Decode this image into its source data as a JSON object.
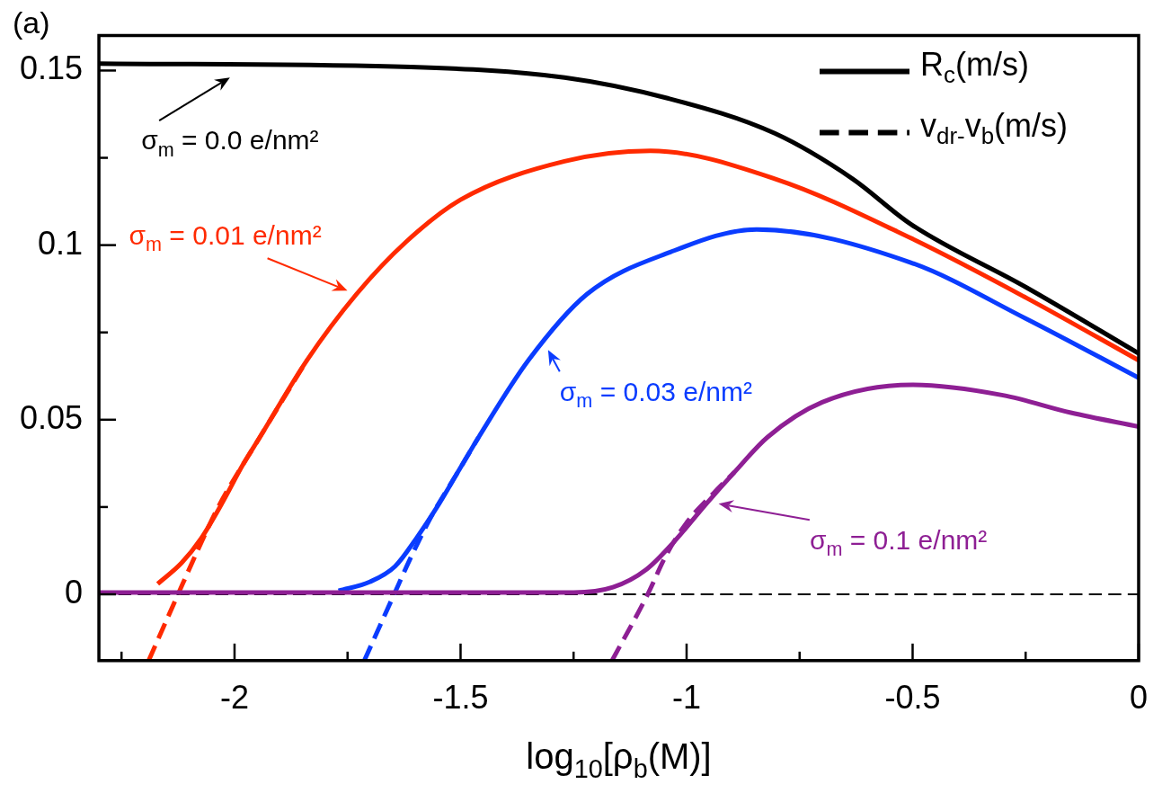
{
  "chart_data": {
    "type": "line",
    "title": "(a)",
    "xlabel": "log$_{10}$[ρ$_{b}$(M)]",
    "xlim": [
      -2.3,
      0
    ],
    "ylim": [
      -0.019,
      0.16
    ],
    "xticks": [
      {
        "value": -2.25,
        "label": null
      },
      -2,
      {
        "value": -1.75,
        "label": null
      },
      -1.5,
      {
        "value": -1.25,
        "label": null
      },
      -1,
      {
        "value": -0.75,
        "label": null
      },
      -0.5,
      {
        "value": -0.25,
        "label": null
      },
      0
    ],
    "yticks": [
      0,
      {
        "value": 0.025,
        "label": null
      },
      0.05,
      {
        "value": 0.075,
        "label": null
      },
      0.1,
      {
        "value": 0.125,
        "label": null
      },
      0.15
    ],
    "grid": false,
    "marker": "none",
    "series": [
      {
        "color": "#000000",
        "line_style": "solid",
        "x": [
          -2.3,
          -1.61,
          -1.27,
          -1.04,
          -0.805,
          -0.633,
          -0.504,
          -0.25,
          0
        ],
        "values": [
          0.152,
          0.151,
          0.148,
          0.142,
          0.132,
          0.119,
          0.106,
          0.088,
          0.069
        ]
      },
      {
        "color": "#ff2a00",
        "line_style": "solid",
        "x": [
          -2.17,
          -2.117,
          -2.074,
          -2.028,
          -1.982,
          -1.944,
          -1.84,
          -1.73,
          -1.62,
          -1.5,
          -1.27,
          -1.08,
          -0.805,
          -0.504,
          -0.25,
          0
        ],
        "values": [
          0.003,
          0.009,
          0.016,
          0.026,
          0.037,
          0.045,
          0.067,
          0.086,
          0.101,
          0.113,
          0.124,
          0.127,
          0.119,
          0.102,
          0.085,
          0.067
        ]
      },
      {
        "color": "#ff2a00",
        "line_style": "dashed",
        "x": [
          -2.19,
          -2.125,
          -2.08,
          -2.036,
          -1.944,
          -1.84
        ],
        "values": [
          -0.019,
          0,
          0.013,
          0.025,
          0.045,
          0.067
        ]
      },
      {
        "color": "#0a3cff",
        "line_style": "solid",
        "x": [
          -1.77,
          -1.7,
          -1.645,
          -1.598,
          -1.552,
          -1.506,
          -1.46,
          -1.35,
          -1.22,
          -1.036,
          -0.845,
          -0.504,
          -0.25,
          0
        ],
        "values": [
          0.001,
          0.0036,
          0.008,
          0.016,
          0.025,
          0.035,
          0.045,
          0.067,
          0.086,
          0.098,
          0.1045,
          0.095,
          0.079,
          0.062
        ]
      },
      {
        "color": "#0a3cff",
        "line_style": "dashed",
        "x": [
          -1.713,
          -1.647,
          -1.612,
          -1.566,
          -1.506,
          -1.46
        ],
        "values": [
          -0.019,
          0,
          0.01,
          0.022,
          0.035,
          0.045
        ]
      },
      {
        "color": "#8e1f94",
        "line_style": "solid",
        "x": [
          -2.3,
          -1.25,
          -1.163,
          -1.09,
          -1.028,
          -0.956,
          -0.894,
          -0.821,
          -0.7,
          -0.5,
          -0.3,
          -0.15,
          0
        ],
        "values": [
          0.0005,
          0.0005,
          0.002,
          0.007,
          0.015,
          0.026,
          0.035,
          0.045,
          0.055,
          0.06,
          0.057,
          0.052,
          0.048
        ]
      },
      {
        "color": "#8e1f94",
        "line_style": "dashed",
        "x": [
          -1.165,
          -1.086,
          -1.046,
          -1,
          -0.94,
          -0.894
        ],
        "values": [
          -0.019,
          0,
          0.011,
          0.0205,
          0.029,
          0.035
        ]
      }
    ],
    "ref_lines": [
      {
        "axis": "y",
        "value": 0,
        "color": "#000000",
        "line_style": "dashed"
      }
    ],
    "annotations": [
      "σ$_{m}$ = 0.0 e/nm²",
      "σ$_{m}$ = 0.01 e/nm²",
      "σ$_{m}$ = 0.03 e/nm²",
      "σ$_{m}$ = 0.1 e/nm²",
      "R$_{c}$(m/s)",
      "v$_{dr-}$v$_{b}$(m/s)"
    ]
  }
}
